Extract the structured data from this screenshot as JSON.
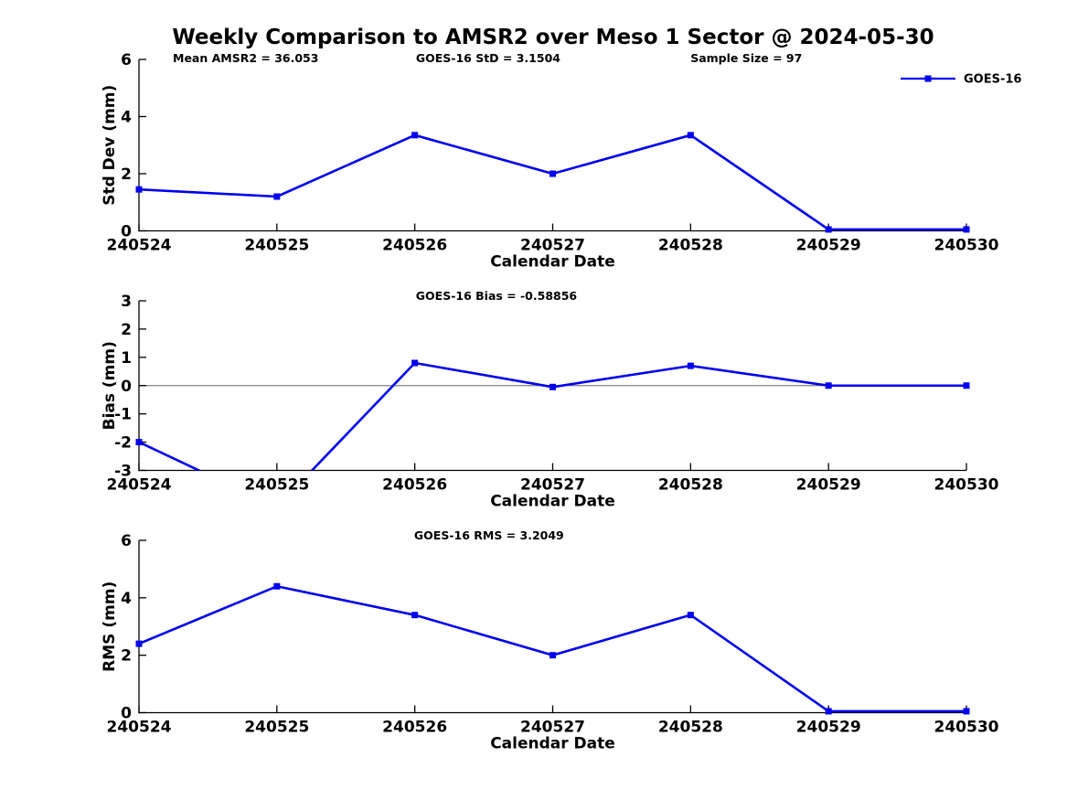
{
  "title": "Weekly Comparison to AMSR2 over Meso 1 Sector @ 2024-05-30",
  "series_color": "#0000EE",
  "zero_line_color": "#808080",
  "axis_color": "#000000",
  "legend": {
    "label": "GOES-16",
    "position": "top-right"
  },
  "chart_data": [
    {
      "id": "stddev",
      "type": "line",
      "ylabel": "Std Dev (mm)",
      "xlabel": "Calendar Date",
      "categories": [
        "240524",
        "240525",
        "240526",
        "240527",
        "240528",
        "240529",
        "240530"
      ],
      "series": [
        {
          "name": "GOES-16",
          "values": [
            1.45,
            1.2,
            3.35,
            2.0,
            3.35,
            0.05,
            0.05
          ]
        }
      ],
      "ylim": [
        0,
        6
      ],
      "yticks": [
        0,
        2,
        4,
        6
      ],
      "grid": false,
      "zero_line": false,
      "annotations": [
        {
          "text": "Mean AMSR2 = 36.053",
          "fx": 0.129
        },
        {
          "text": "GOES-16 StD = 3.1504",
          "fx": 0.422
        },
        {
          "text": "Sample Size = 97",
          "fx": 0.734
        }
      ],
      "legend": {
        "label": "GOES-16"
      }
    },
    {
      "id": "bias",
      "type": "line",
      "ylabel": "Bias (mm)",
      "xlabel": "Calendar Date",
      "categories": [
        "240524",
        "240525",
        "240526",
        "240527",
        "240528",
        "240529",
        "240530"
      ],
      "series": [
        {
          "name": "GOES-16",
          "values": [
            -2.0,
            -4.3,
            0.8,
            -0.05,
            0.7,
            0.0,
            0.0
          ]
        }
      ],
      "ylim": [
        -3,
        3
      ],
      "yticks": [
        -3,
        -2,
        -1,
        0,
        1,
        2,
        3
      ],
      "grid": false,
      "zero_line": true,
      "annotations": [
        {
          "text": "GOES-16 Bias  = -0.58856",
          "fx": 0.432
        }
      ],
      "legend": null
    },
    {
      "id": "rms",
      "type": "line",
      "ylabel": "RMS (mm)",
      "xlabel": "Calendar Date",
      "categories": [
        "240524",
        "240525",
        "240526",
        "240527",
        "240528",
        "240529",
        "240530"
      ],
      "series": [
        {
          "name": "GOES-16",
          "values": [
            2.4,
            4.4,
            3.4,
            2.0,
            3.4,
            0.05,
            0.05
          ]
        }
      ],
      "ylim": [
        0,
        6
      ],
      "yticks": [
        0,
        2,
        4,
        6
      ],
      "grid": false,
      "zero_line": false,
      "annotations": [
        {
          "text": "GOES-16 RMS = 3.2049",
          "fx": 0.423
        }
      ],
      "legend": null
    }
  ]
}
